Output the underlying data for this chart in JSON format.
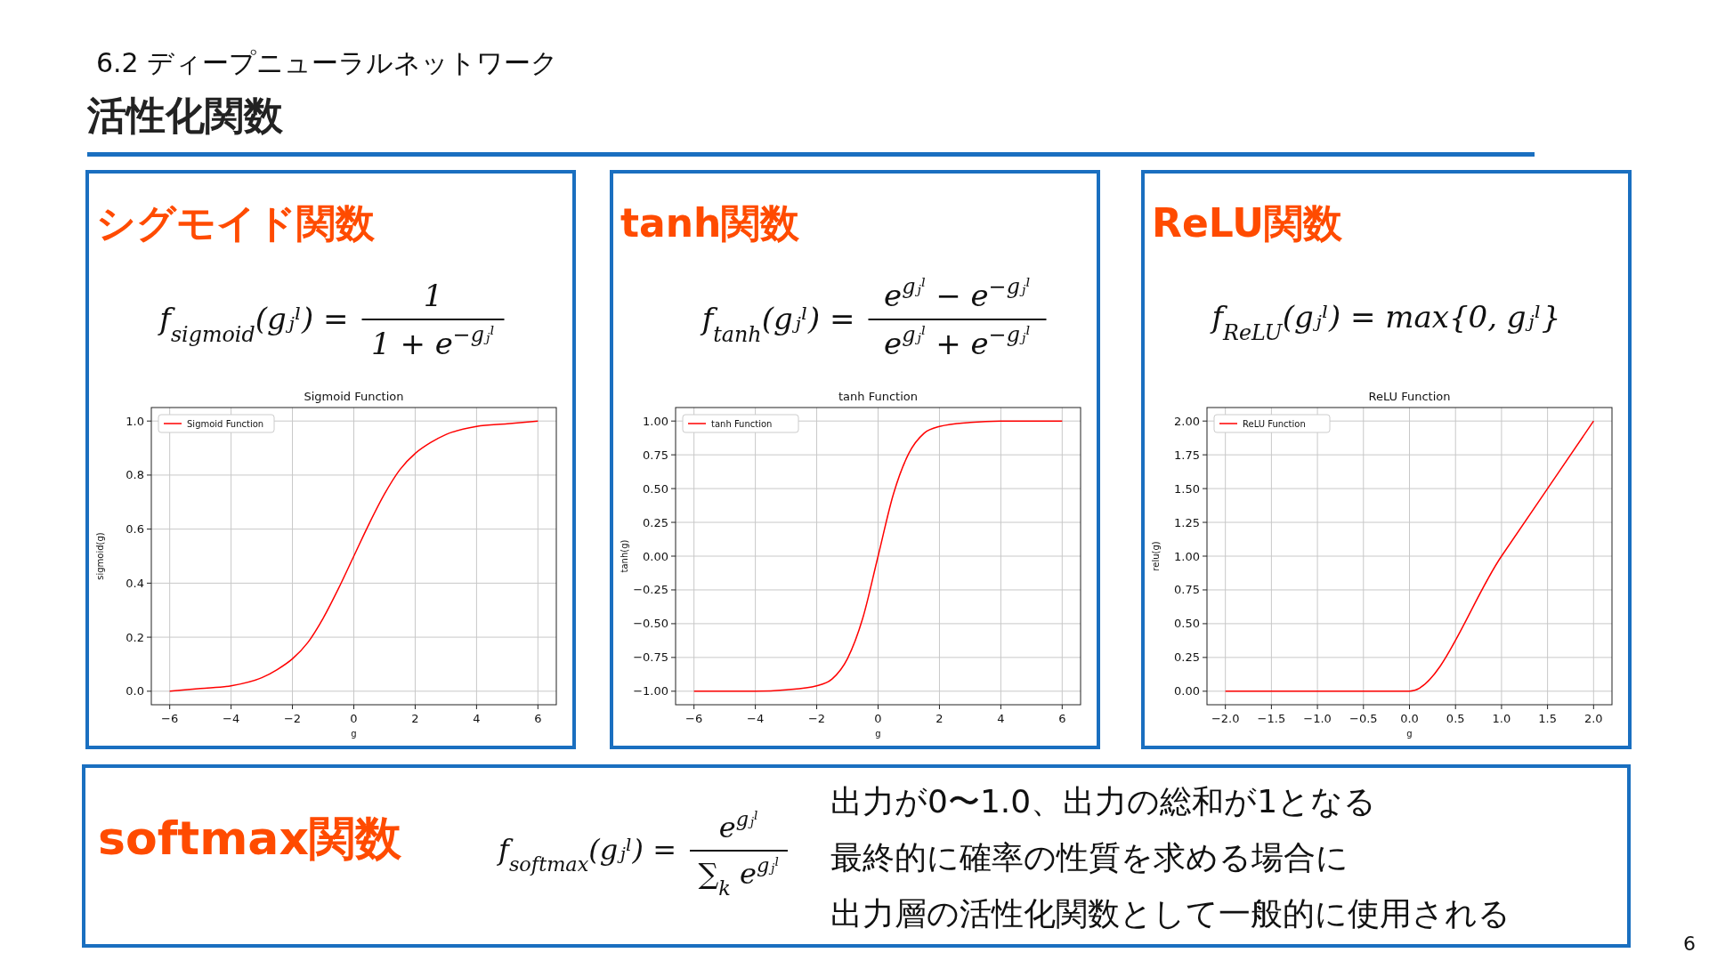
{
  "chart_data": [
    {
      "type": "other",
      "title": "活性化関数",
      "subtitle": "6.2 ディープニューラルネットワーク",
      "annotations": [
        "6"
      ]
    },
    {
      "type": "line",
      "title": "Sigmoid Function",
      "xlabel": "g",
      "ylabel": "sigmoid(g)",
      "annotations": [
        "シグモイド関数",
        "f$_{sigmoid}$(gⱼˡ) =",
        "1",
        "1 + e$^{−gⱼˡ}$"
      ],
      "x": [
        -6,
        -5,
        -4,
        -3,
        -2.5,
        -2,
        -1.5,
        -1,
        -0.5,
        0,
        0.5,
        1,
        1.5,
        2,
        2.5,
        3,
        4,
        5,
        6
      ],
      "series": [
        {
          "name": "Sigmoid Function",
          "color": "#ff0000",
          "values": [
            0.0,
            0.01,
            0.02,
            0.05,
            0.08,
            0.12,
            0.18,
            0.27,
            0.38,
            0.5,
            0.62,
            0.73,
            0.82,
            0.88,
            0.92,
            0.95,
            0.98,
            0.99,
            1.0
          ]
        }
      ],
      "xlim": [
        -6.6,
        6.6
      ],
      "ylim": [
        -0.05,
        1.05
      ],
      "xticks": [
        {
          "value": -6,
          "label": "−6"
        },
        {
          "value": -4,
          "label": "−4"
        },
        {
          "value": -2,
          "label": "−2"
        },
        0,
        2,
        4,
        6
      ],
      "yticks": [
        {
          "value": 0,
          "label": "0.0"
        },
        0.2,
        0.4,
        0.6,
        0.8,
        {
          "value": 1,
          "label": "1.0"
        }
      ],
      "grid": true,
      "legend": "top left"
    },
    {
      "type": "line",
      "title": "tanh Function",
      "xlabel": "g",
      "ylabel": "tanh(g)",
      "annotations": [
        "tanh関数",
        "f$_{tanh}$(gⱼˡ) =",
        "e$^{gⱼˡ}$ − e$^{−gⱼˡ}$",
        "e$^{gⱼˡ}$ + e$^{−gⱼˡ}$"
      ],
      "x": [
        -6,
        -4,
        -3,
        -2,
        -1.5,
        -1,
        -0.5,
        0,
        0.5,
        1,
        1.5,
        2,
        3,
        4,
        6
      ],
      "series": [
        {
          "name": "tanh Function",
          "color": "#ff0000",
          "values": [
            -1.0,
            -1.0,
            -0.99,
            -0.96,
            -0.91,
            -0.76,
            -0.46,
            0,
            0.46,
            0.76,
            0.91,
            0.96,
            0.99,
            1.0,
            1.0
          ]
        }
      ],
      "xlim": [
        -6.6,
        6.6
      ],
      "ylim": [
        -1.1,
        1.1
      ],
      "xticks": [
        {
          "value": -6,
          "label": "−6"
        },
        {
          "value": -4,
          "label": "−4"
        },
        {
          "value": -2,
          "label": "−2"
        },
        0,
        2,
        4,
        6
      ],
      "yticks": [
        {
          "value": -1,
          "label": "−1.00"
        },
        {
          "value": -0.75,
          "label": "−0.75"
        },
        {
          "value": -0.5,
          "label": "−0.50"
        },
        {
          "value": -0.25,
          "label": "−0.25"
        },
        {
          "value": 0,
          "label": "0.00"
        },
        0.25,
        {
          "value": 0.5,
          "label": "0.50"
        },
        0.75,
        {
          "value": 1,
          "label": "1.00"
        }
      ],
      "grid": true,
      "legend": "top left"
    },
    {
      "type": "line",
      "title": "ReLU Function",
      "xlabel": "g",
      "ylabel": "relu(g)",
      "annotations": [
        "ReLU関数",
        "f$_{ReLU}$(gⱼˡ) = max{0, gⱼˡ}"
      ],
      "x": [
        -2,
        -1,
        0,
        1,
        2
      ],
      "series": [
        {
          "name": "ReLU Function",
          "color": "#ff0000",
          "values": [
            0,
            0,
            0,
            1,
            2
          ]
        }
      ],
      "xlim": [
        -2.2,
        2.2
      ],
      "ylim": [
        -0.1,
        2.1
      ],
      "xticks": [
        {
          "value": -2,
          "label": "−2.0"
        },
        {
          "value": -1.5,
          "label": "−1.5"
        },
        {
          "value": -1,
          "label": "−1.0"
        },
        {
          "value": -0.5,
          "label": "−0.5"
        },
        {
          "value": 0,
          "label": "0.0"
        },
        0.5,
        {
          "value": 1,
          "label": "1.0"
        },
        1.5,
        {
          "value": 2,
          "label": "2.0"
        }
      ],
      "yticks": [
        {
          "value": 0,
          "label": "0.00"
        },
        0.25,
        {
          "value": 0.5,
          "label": "0.50"
        },
        0.75,
        {
          "value": 1,
          "label": "1.00"
        },
        1.25,
        {
          "value": 1.5,
          "label": "1.50"
        },
        1.75,
        {
          "value": 2,
          "label": "2.00"
        }
      ],
      "grid": true,
      "legend": "top left"
    },
    {
      "type": "other",
      "title": "softmax関数",
      "annotations": [
        "f$_{softmax}$(gⱼˡ) =",
        "e$^{gⱼˡ}$",
        "∑$_{k}$ e$^{gⱼˡ}$",
        "出力が0〜1.0、出力の総和が1となる",
        "最終的に確率の性質を求める場合に",
        "出力層の活性化関数として一般的に使用される"
      ]
    }
  ]
}
